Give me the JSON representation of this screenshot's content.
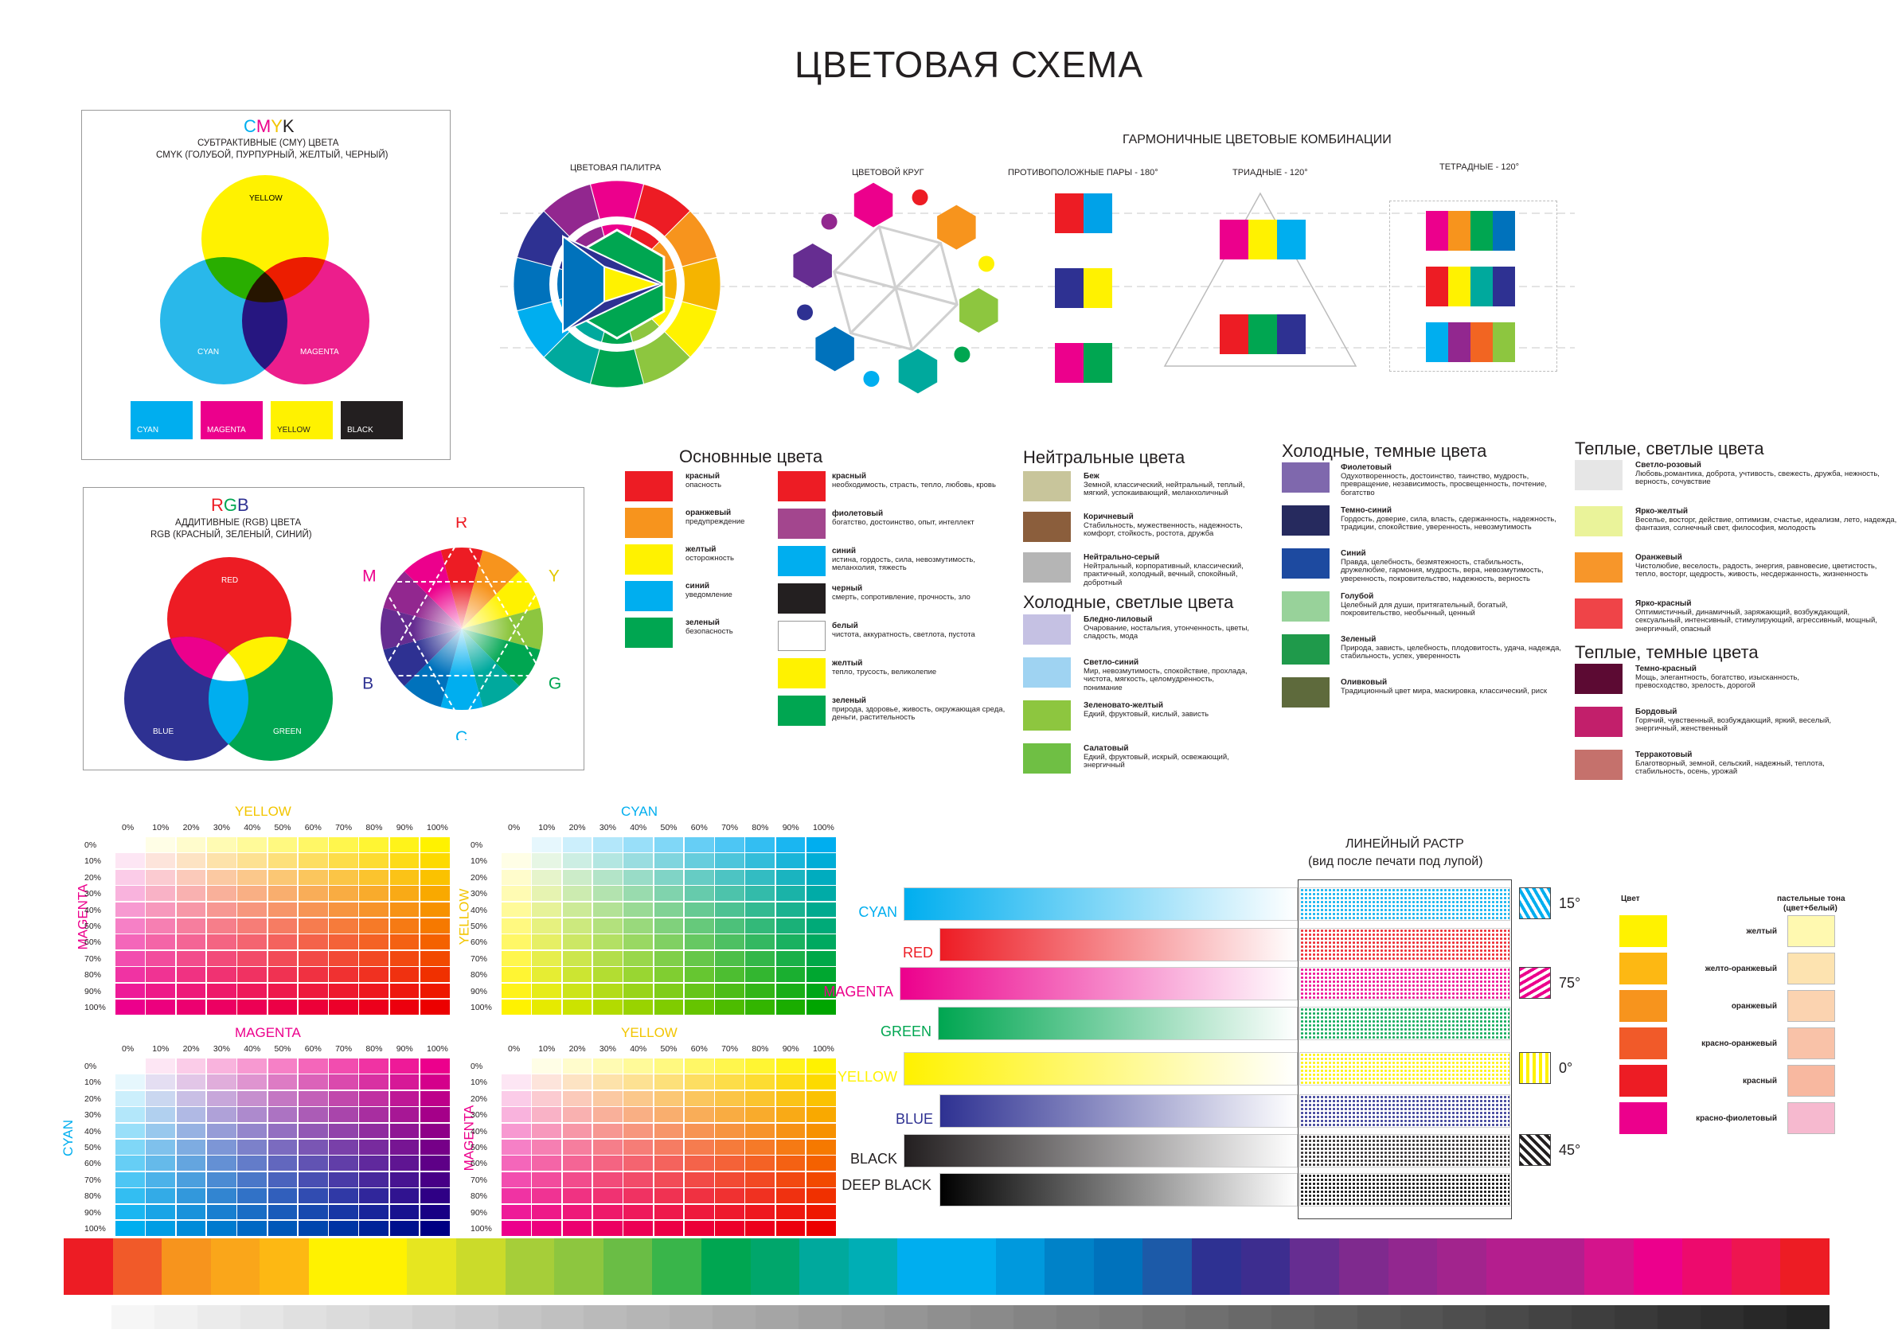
{
  "title": "ЦВЕТОВАЯ СХЕМА",
  "colors": {
    "cyan": "#00aeef",
    "magenta": "#ec008c",
    "yellow": "#fff200",
    "black": "#231f20",
    "red": "#ed1c24",
    "green": "#00a651",
    "blue": "#2e3192"
  },
  "cmyk": {
    "letters": [
      "C",
      "M",
      "Y",
      "K"
    ],
    "line1": "СУБТРАКТИВНЫЕ (CMY) ЦВЕТА",
    "line2": "CMYK (ГОЛУБОЙ, ПУРПУРНЫЙ, ЖЕЛТЫЙ, ЧЕРНЫЙ)",
    "circle_yellow": "YELLOW",
    "circle_cyan": "CYAN",
    "circle_magenta": "MAGENTA",
    "swatches": [
      {
        "label": "CYAN",
        "color": "#00aeef"
      },
      {
        "label": "MAGENTA",
        "color": "#ec008c"
      },
      {
        "label": "YELLOW",
        "color": "#fff200"
      },
      {
        "label": "BLACK",
        "color": "#231f20"
      }
    ]
  },
  "rgb": {
    "letters": [
      "R",
      "G",
      "B"
    ],
    "line1": "АДДИТИВНЫЕ (RGB) ЦВЕТА",
    "line2": "RGB (КРАСНЫЙ, ЗЕЛЕНЫЙ, СИНИЙ)",
    "circle_red": "RED",
    "circle_blue": "BLUE",
    "circle_green": "GREEN",
    "wheel_labels": [
      "R",
      "Y",
      "G",
      "C",
      "B",
      "M"
    ]
  },
  "harmony": {
    "title": "ГАРМОНИЧНЫЕ ЦВЕТОВЫЕ КОМБИНАЦИИ",
    "palette": "ЦВЕТОВАЯ ПАЛИТРА",
    "wheel": "ЦВЕТОВОЙ КРУГ",
    "opposite": "ПРОТИВОПОЛОЖНЫЕ ПАРЫ - 180°",
    "triad": "ТРИАДНЫЕ - 120°",
    "tetrad": "ТЕТРАДНЫЕ - 120°",
    "opposite_pairs": [
      [
        "#ed1c24",
        "#00a2e8"
      ],
      [
        "#2e3192",
        "#fff200"
      ],
      [
        "#ec008c",
        "#00a651"
      ]
    ],
    "triads": [
      [
        "#ec008c",
        "#fff200",
        "#00aeef"
      ],
      [
        "#ed1c24",
        "#00a651",
        "#2e3192"
      ]
    ],
    "tetrads": [
      [
        "#ec008c",
        "#f7941d",
        "#00a651",
        "#0072bc"
      ],
      [
        "#ed1c24",
        "#fff200",
        "#00a99d",
        "#2e3192"
      ],
      [
        "#00aeef",
        "#92278f",
        "#f26522",
        "#8dc63f"
      ]
    ]
  },
  "basic": {
    "title": "Основнные цвета",
    "col1": [
      {
        "color": "#ed1c24",
        "name": "красный",
        "desc": "опасность"
      },
      {
        "color": "#f7941d",
        "name": "оранжевый",
        "desc": "предупреждение"
      },
      {
        "color": "#fff200",
        "name": "желтый",
        "desc": "осторожность"
      },
      {
        "color": "#00aeef",
        "name": "синий",
        "desc": "уведомление"
      },
      {
        "color": "#00a651",
        "name": "зеленый",
        "desc": "безопасность"
      }
    ],
    "col2": [
      {
        "color": "#ed1c24",
        "name": "красный",
        "desc": "необходимость, страсть, тепло, любовь, кровь"
      },
      {
        "color": "#a3468e",
        "name": "фиолетовый",
        "desc": "богатство, достоинство, опыт, интеллект"
      },
      {
        "color": "#00aeef",
        "name": "синий",
        "desc": "истина, гордость, сила, невозмутимость, меланхолия, тяжесть"
      },
      {
        "color": "#231f20",
        "name": "черный",
        "desc": "смерть, сопротивление, прочность, зло"
      },
      {
        "color": "#ffffff",
        "name": "белый",
        "desc": "чистота, аккуратность, светлота, пустота"
      },
      {
        "color": "#fff200",
        "name": "желтый",
        "desc": "тепло, трусость, великолепие"
      },
      {
        "color": "#00a651",
        "name": "зеленый",
        "desc": "природа, здоровье, живость, окружающая среда, деньги, растительность"
      }
    ]
  },
  "neutral": {
    "title": "Нейтральные цвета",
    "items": [
      {
        "color": "#c8c59b",
        "name": "Беж",
        "desc": "Земной, классический, нейтральный, теплый, мягкий, успокаивающий, меланхоличный"
      },
      {
        "color": "#8b5e3c",
        "name": "Коричневый",
        "desc": "Стабильность, мужественность, надежность, комфорт, стойкость, ростота, дружба"
      },
      {
        "color": "#b5b5b5",
        "name": "Нейтрально-серый",
        "desc": "Нейтральный, корпоративный, классический, практичный, холодный, вечный, спокойный, добротный"
      }
    ]
  },
  "cool_light": {
    "title": "Холодные, светлые цвета",
    "items": [
      {
        "color": "#c5c1e3",
        "name": "Бледно-лиловый",
        "desc": "Очарование, ностальгия, утонченность, цветы, сладость, мода"
      },
      {
        "color": "#9fd3f2",
        "name": "Светло-синий",
        "desc": "Мир, невозмутимость, спокойствие, прохлада, чистота, мягкость, целомудренность, понимание"
      },
      {
        "color": "#8dc63f",
        "name": "Зеленовато-желтый",
        "desc": "Едкий, фруктовый, кислый, зависть"
      },
      {
        "color": "#6fbf44",
        "name": "Салатовый",
        "desc": "Едкий, фруктовый, искрый, освежающий, энергичный"
      }
    ]
  },
  "cool_dark": {
    "title": "Холодные, темные цвета",
    "items": [
      {
        "color": "#7f68ad",
        "name": "Фиолетовый",
        "desc": "Одухотворенность, достоинство, таинство, мудрость, превращение, независимость, просвещенность, почтение, богатство"
      },
      {
        "color": "#262a5e",
        "name": "Темно-синий",
        "desc": "Гордость, доверие, сила, власть, сдержанность, надежность, традиции, спокойствие, уверенность, невозмутимость"
      },
      {
        "color": "#1d4aa0",
        "name": "Синий",
        "desc": "Правда, целебность, безмятежность, стабильность, дружелюбие, гармония, мудрость, вера, невозмутимость, уверенность, покровительство, надежность, верность"
      },
      {
        "color": "#98d29a",
        "name": "Голубой",
        "desc": "Целебный для души, притягательный, богатый, покровительство, необычный, ценный"
      },
      {
        "color": "#1f9a4b",
        "name": "Зеленый",
        "desc": "Природа, зависть, целебность, плодовитость, удача, надежда, стабильность, успех, уверенность"
      },
      {
        "color": "#5e6a3c",
        "name": "Оливковый",
        "desc": "Традиционный цвет мира, маскировка, классический, риск"
      }
    ]
  },
  "warm_light": {
    "title": "Теплые, светлые цвета",
    "items": [
      {
        "color": "#e6e6e6",
        "name": "Светло-розовый",
        "desc": "Любовь,романтика, доброта, учтивость, свежесть, дружба, нежность, верность, сочувствие"
      },
      {
        "color": "#eaf39a",
        "name": "Ярко-желтый",
        "desc": "Веселье, восторг, действие, оптимизм, счастье, идеализм, лето, надежда, фантазия, солнечный свет, философия, молодость"
      },
      {
        "color": "#f7962a",
        "name": "Оранжевый",
        "desc": "Чистолюбие, веселость, радость, энергия, равновесие, цветистость, тепло, восторг, щедрость, живость, несдержанность, жизненность"
      },
      {
        "color": "#ef4448",
        "name": "Ярко-красный",
        "desc": "Оптимистичный, динамичный, заряжающий, возбуждающий, сексуальный, интенсивный, стимулирующий, агрессивный, мощный, энергичный, опасный"
      }
    ]
  },
  "warm_dark": {
    "title": "Теплые, темные цвета",
    "items": [
      {
        "color": "#5c0a33",
        "name": "Темно-красный",
        "desc": "Мощь, элегантность, богатство, изысканность, превосходство, зрелость, дорогой"
      },
      {
        "color": "#c21f6b",
        "name": "Бордовый",
        "desc": "Горячий, чувственный, возбуждающий, яркий, веселый, энергичный, женственный"
      },
      {
        "color": "#c5716c",
        "name": "Терракотовый",
        "desc": "Благотворный, земной, сельский, надежный, теплота, стабильность, осень, урожай"
      }
    ]
  },
  "grids": {
    "cols": [
      "0%",
      "10%",
      "20%",
      "30%",
      "40%",
      "50%",
      "60%",
      "70%",
      "80%",
      "90%",
      "100%"
    ],
    "rows": [
      "0%",
      "10%",
      "20%",
      "30%",
      "40%",
      "50%",
      "60%",
      "70%",
      "80%",
      "90%",
      "100%"
    ],
    "g1": {
      "top": "YELLOW",
      "side": "MAGENTA"
    },
    "g2": {
      "top": "CYAN",
      "side": "YELLOW"
    },
    "g3": {
      "top": "MAGENTA",
      "side": "CYAN"
    },
    "g4": {
      "top": "YELLOW",
      "side": "MAGENTA"
    }
  },
  "raster": {
    "title1": "ЛИНЕЙНЫЙ РАСТР",
    "title2": "(вид после печати под лупой)",
    "bars": [
      {
        "label": "CYAN",
        "color": "#00aeef",
        "labelColor": "#00aeef"
      },
      {
        "label": "RED",
        "color": "#ed1c24",
        "labelColor": "#ed1c24"
      },
      {
        "label": "MAGENTA",
        "color": "#ec008c",
        "labelColor": "#ec008c"
      },
      {
        "label": "GREEN",
        "color": "#00a651",
        "labelColor": "#00a651"
      },
      {
        "label": "YELLOW",
        "color": "#fff200",
        "labelColor": "#fff200"
      },
      {
        "label": "BLUE",
        "color": "#2e3192",
        "labelColor": "#2e3192"
      },
      {
        "label": "BLACK",
        "color": "#231f20",
        "labelColor": "#231f20"
      },
      {
        "label": "DEEP BLACK",
        "color": "#000000",
        "labelColor": "#231f20"
      }
    ],
    "angles": [
      "15°",
      "75°",
      "0°",
      "45°"
    ]
  },
  "pastel": {
    "col1": "Цвет",
    "col2a": "пастельные тона",
    "col2b": "(цвет+белый)",
    "items": [
      {
        "name": "желтый",
        "c": "#fff200",
        "p": "#fff9b0"
      },
      {
        "name": "желто-оранжевый",
        "c": "#fdb813",
        "p": "#fde3b0"
      },
      {
        "name": "оранжевый",
        "c": "#f7941d",
        "p": "#fbd3b0"
      },
      {
        "name": "красно-оранжевый",
        "c": "#f15a29",
        "p": "#f9c2a8"
      },
      {
        "name": "красный",
        "c": "#ed1c24",
        "p": "#f8b8a0"
      },
      {
        "name": "красно-фиолетовый",
        "c": "#ec008c",
        "p": "#f6b9cf"
      }
    ]
  },
  "spectrum": [
    "#ed1c24",
    "#f15a29",
    "#f7941d",
    "#faa61a",
    "#fdb813",
    "#fff200",
    "#e6e620",
    "#cbdb2a",
    "#a6ce39",
    "#8dc63f",
    "#6abd45",
    "#39b54a",
    "#00a651",
    "#00a66b",
    "#00a99d",
    "#00aeb5",
    "#00aeef",
    "#0099dd",
    "#0082c8",
    "#0072bc",
    "#1c5aa8",
    "#2e3192",
    "#3d2d8f",
    "#662d91",
    "#7f2a8e",
    "#92278f",
    "#a2248d",
    "#b41e8e",
    "#d4148c",
    "#ec008c",
    "#ed0a6d",
    "#ee1550",
    "#ed1c24"
  ]
}
